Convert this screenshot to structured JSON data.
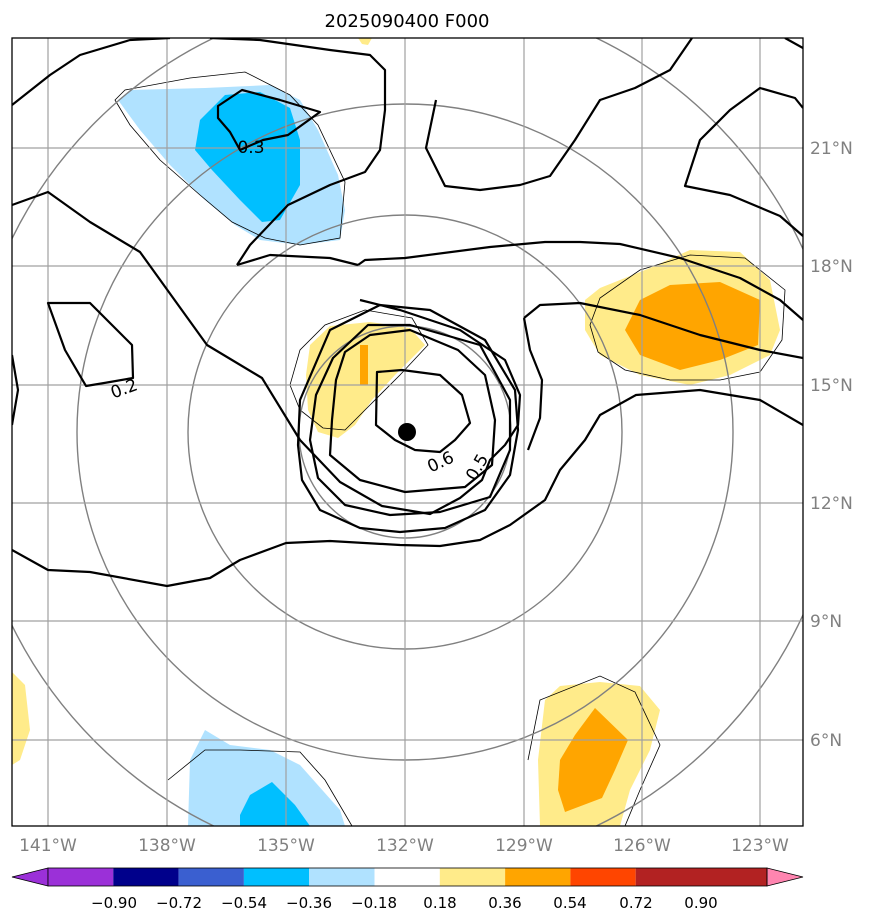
{
  "title": "2025090400 F000",
  "lon_labels": [
    "141°W",
    "138°W",
    "135°W",
    "132°W",
    "129°W",
    "126°W",
    "123°W"
  ],
  "lat_labels": [
    "21°N",
    "18°N",
    "15°N",
    "12°N",
    "9°N",
    "6°N"
  ],
  "colorbar": {
    "ticks": [
      "−0.90",
      "−0.72",
      "−0.54",
      "−0.36",
      "−0.18",
      "0.18",
      "0.36",
      "0.54",
      "0.72",
      "0.90"
    ],
    "colors": [
      "#9b30d8",
      "#00008b",
      "#3a5fd0",
      "#00bfff",
      "#b0e2ff",
      "#ffffff",
      "#ffeb8a",
      "#ffa500",
      "#ff4500",
      "#b22222",
      "#ff85b0"
    ]
  },
  "contour_labels": [
    "0.3",
    "0.2",
    "0.6",
    "0.5"
  ],
  "center_marker": {
    "lon": -132.0,
    "lat": 13.8
  },
  "map": {
    "lon_range": [
      -142,
      -122
    ],
    "lat_range": [
      3.9,
      23.8
    ],
    "grid": true,
    "range_rings": true
  }
}
